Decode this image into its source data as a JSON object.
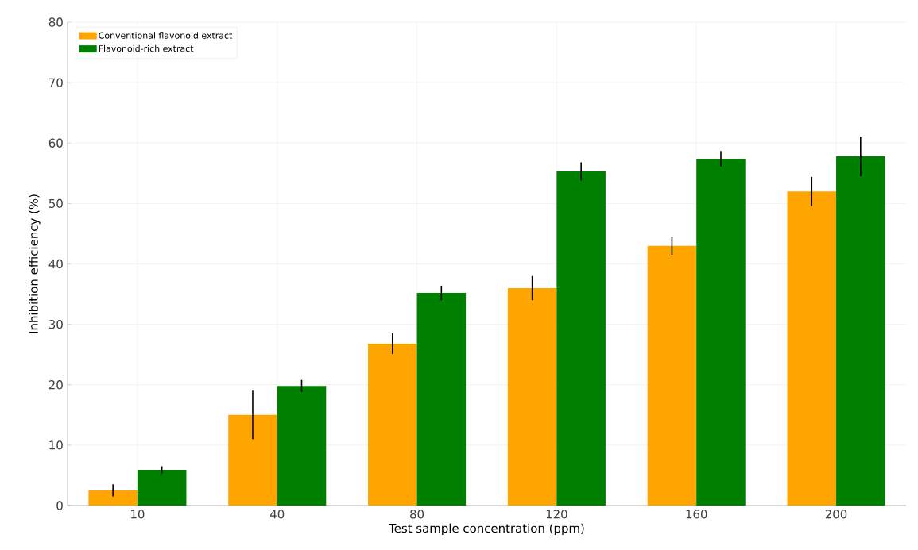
{
  "chart_data": {
    "type": "bar",
    "xlabel": "Test sample concentration (ppm)",
    "ylabel": "Inhibition efficiency (%)",
    "categories": [
      "10",
      "40",
      "80",
      "120",
      "160",
      "200"
    ],
    "series": [
      {
        "name": "Conventional flavonoid extract",
        "color": "#ffa500",
        "values": [
          2.5,
          15,
          26.8,
          36,
          43,
          52
        ],
        "errors": [
          1,
          4,
          1.7,
          2,
          1.5,
          2.4
        ]
      },
      {
        "name": "Flavonoid-rich extract",
        "color": "#008000",
        "values": [
          5.9,
          19.8,
          35.2,
          55.3,
          57.4,
          57.8
        ],
        "errors": [
          0.6,
          1,
          1.2,
          1.5,
          1.3,
          3.3
        ]
      }
    ],
    "ylim": [
      0,
      80
    ],
    "yticks": [
      0,
      10,
      20,
      30,
      40,
      50,
      60,
      70,
      80
    ],
    "grid": true,
    "legend": "top left"
  }
}
